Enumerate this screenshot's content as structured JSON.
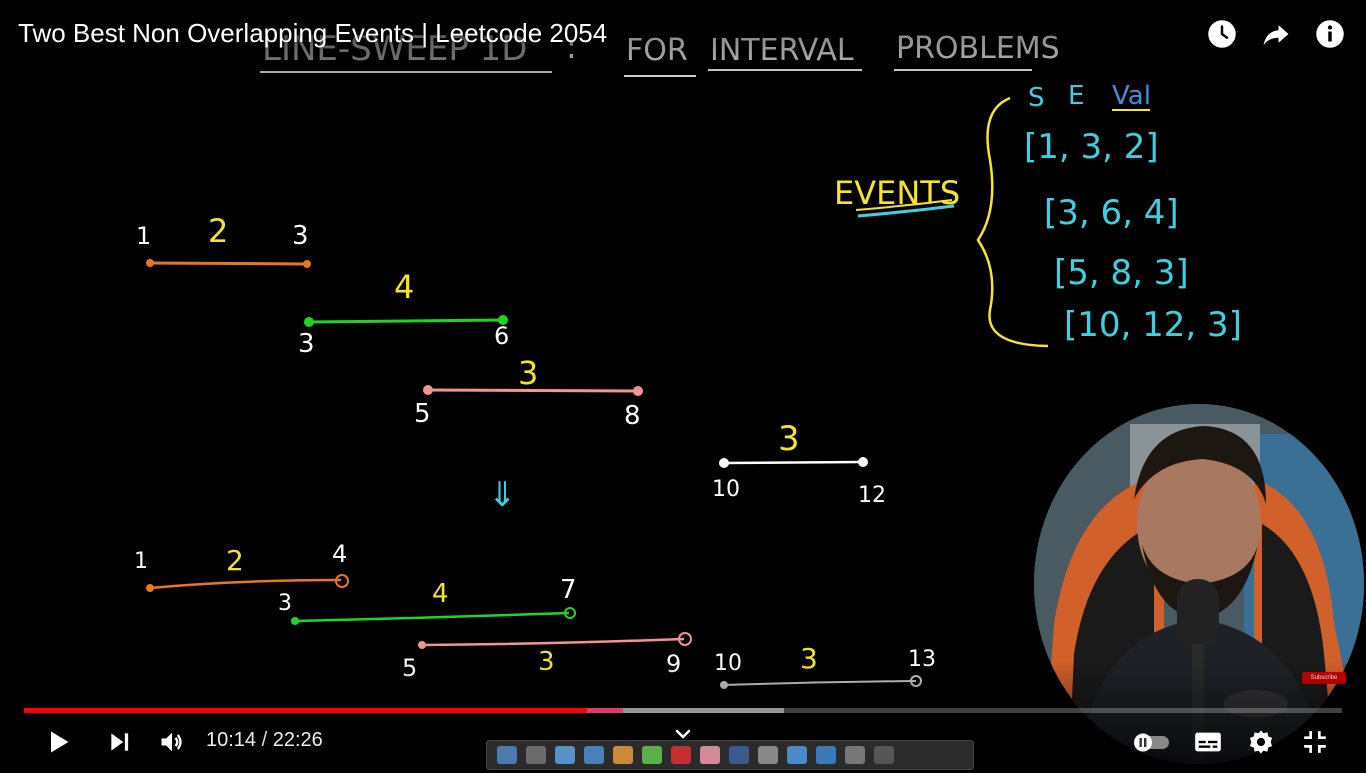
{
  "video": {
    "title": "Two Best Non Overlapping Events | Leetcode 2054"
  },
  "top_bar": {
    "icons": [
      "watch-later-icon",
      "share-icon",
      "info-icon"
    ]
  },
  "whiteboard": {
    "heading": {
      "part1": "LINE-SWEEP 1D",
      "sep": ":",
      "part2": "FOR",
      "part3": "INTERVAL",
      "part4": "PROBLEMS"
    },
    "events_label": "EVENTS",
    "events_header": {
      "s": "S",
      "e": "E",
      "val": "Val"
    },
    "events": [
      {
        "text": "[1, 3, 2]"
      },
      {
        "text": "[3, 6, 4]"
      },
      {
        "text": "[5, 8, 3]"
      },
      {
        "text": "[10, 12, 3]"
      }
    ],
    "upper_intervals": [
      {
        "start": "1",
        "end": "3",
        "value": "2",
        "color": "#e87722"
      },
      {
        "start": "3",
        "end": "6",
        "value": "4",
        "color": "#22d422"
      },
      {
        "start": "5",
        "end": "8",
        "value": "3",
        "color": "#f29494"
      },
      {
        "start": "10",
        "end": "12",
        "value": "3",
        "color": "#ffffff"
      }
    ],
    "arrow": "⇓",
    "lower_intervals": [
      {
        "start": "1",
        "end": "4",
        "value": "2",
        "color": "#e87722"
      },
      {
        "start": "3",
        "end": "7",
        "value": "4",
        "color": "#22d422"
      },
      {
        "start": "5",
        "end": "9",
        "value": "3",
        "color": "#f29494"
      },
      {
        "start": "10",
        "end": "13",
        "value": "3",
        "color": "#cccccc"
      }
    ]
  },
  "channel_badge": "Subscribe",
  "player": {
    "current_time": "10:14",
    "separator": "/",
    "duration": "22:26",
    "progress_played": 0.4542,
    "progress_buffered": 0.577,
    "colors": {
      "played": "#ff0000",
      "accent_yellow": "#f5e52a",
      "accent_cyan": "#3fd0e0"
    }
  }
}
